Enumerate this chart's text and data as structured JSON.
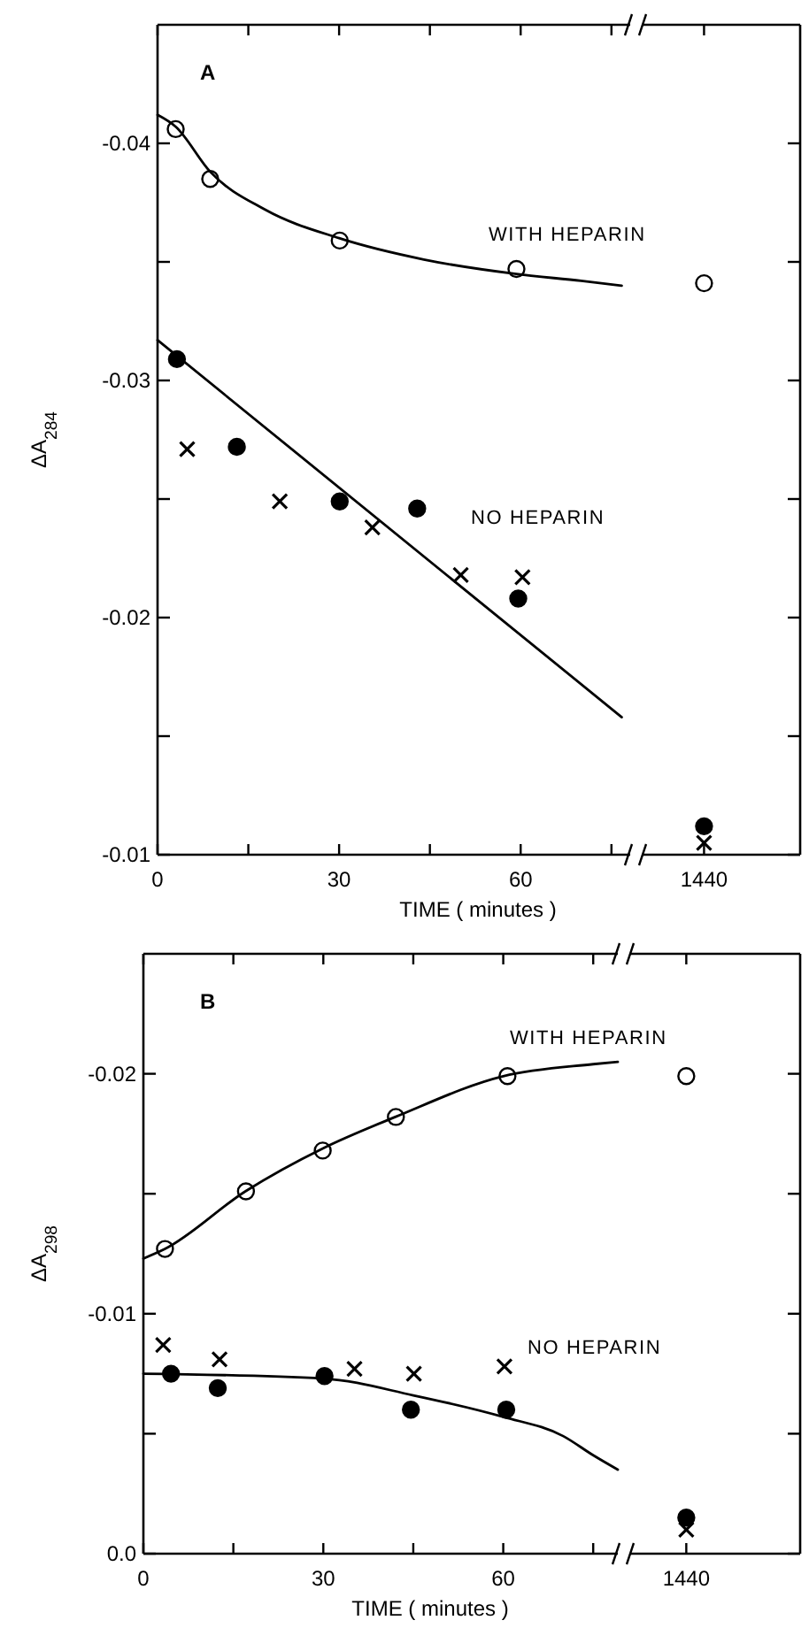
{
  "chart_data": [
    {
      "type": "scatter",
      "title": "A",
      "xlabel": "TIME ( minutes )",
      "ylabel": "ΔA$_{284}$",
      "xlim": [
        0,
        78.1
      ],
      "xticks": [
        0,
        {
          "value": 15,
          "label": null
        },
        30,
        {
          "value": 45,
          "label": null
        },
        60,
        {
          "value": 75,
          "label": null
        }
      ],
      "ylim": [
        -0.01,
        -0.045
      ],
      "yticks": [
        -0.01,
        {
          "value": -0.015,
          "label": null
        },
        -0.02,
        {
          "value": -0.025,
          "label": null
        },
        -0.03,
        {
          "value": -0.035,
          "label": null
        },
        -0.04
      ],
      "series": [
        {
          "marker": "circle",
          "color": "#ffffff",
          "x": [
            3.0,
            8.7,
            30.1,
            59.3
          ],
          "values": [
            -0.0406,
            -0.0385,
            -0.0359,
            -0.0347
          ]
        },
        {
          "type": "line",
          "color": "#000000",
          "x": [
            0,
            3,
            8.7,
            17.8,
            30,
            44,
            59,
            70,
            76.7
          ],
          "values": [
            -0.0412,
            -0.0407,
            -0.0388,
            -0.0372,
            -0.036,
            -0.0351,
            -0.0345,
            -0.0342,
            -0.034
          ]
        },
        {
          "marker": "circle",
          "color": "#000000",
          "x": [
            3.2,
            13.1,
            30.1,
            42.9,
            59.6
          ],
          "values": [
            -0.0309,
            -0.0272,
            -0.0249,
            -0.0246,
            -0.0208
          ]
        },
        {
          "marker": "cross",
          "color": "#000000",
          "x": [
            4.9,
            20.2,
            35.5,
            50.1,
            60.3
          ],
          "values": [
            -0.0271,
            -0.0249,
            -0.0238,
            -0.0218,
            -0.0217
          ]
        },
        {
          "type": "line",
          "color": "#000000",
          "x": [
            0,
            76.7
          ],
          "values": [
            -0.0317,
            -0.0158
          ]
        }
      ],
      "annotations": [
        "WITH HEPARIN",
        "NO HEPARIN"
      ]
    },
    {
      "type": "scatter",
      "tick_labels": "x",
      "categories": [
        "1440"
      ],
      "ylim": [
        -0.01,
        -0.045
      ],
      "yticks": [
        -0.01,
        {
          "value": -0.015,
          "label": null
        },
        -0.02,
        {
          "value": -0.025,
          "label": null
        },
        -0.03,
        {
          "value": -0.035,
          "label": null
        },
        -0.04
      ],
      "series": [
        {
          "marker": "circle",
          "color": "#ffffff",
          "values": [
            -0.0341
          ]
        },
        {
          "marker": "circle",
          "color": "#000000",
          "values": [
            -0.0112
          ]
        },
        {
          "marker": "cross",
          "color": "#000000",
          "values": [
            -0.0105
          ]
        }
      ]
    },
    {
      "type": "scatter",
      "title": "B",
      "xlabel": "TIME ( minutes )",
      "ylabel": "ΔA$_{298}$",
      "xlim": [
        0,
        79.1
      ],
      "xticks": [
        0,
        {
          "value": 15,
          "label": null
        },
        30,
        {
          "value": 45,
          "label": null
        },
        60,
        {
          "value": 75,
          "label": null
        }
      ],
      "ylim": [
        0,
        -0.025
      ],
      "yticks": [
        {
          "value": 0,
          "label": "0.0"
        },
        {
          "value": -0.005,
          "label": null
        },
        -0.01,
        {
          "value": -0.015,
          "label": null
        },
        -0.02
      ],
      "series": [
        {
          "marker": "circle",
          "color": "#ffffff",
          "x": [
            3.6,
            17.1,
            29.9,
            42.1,
            60.7
          ],
          "values": [
            -0.0127,
            -0.0151,
            -0.0168,
            -0.0182,
            -0.0199
          ]
        },
        {
          "type": "line",
          "color": "#000000",
          "x": [
            0,
            3.6,
            17,
            30,
            42,
            60,
            75,
            79.1
          ],
          "values": [
            -0.0123,
            -0.0127,
            -0.0151,
            -0.0169,
            -0.0182,
            -0.0199,
            -0.0204,
            -0.0205
          ]
        },
        {
          "marker": "circle",
          "color": "#000000",
          "x": [
            4.6,
            12.4,
            30.2,
            44.6,
            60.5
          ],
          "values": [
            -0.0075,
            -0.0069,
            -0.0074,
            -0.006,
            -0.006
          ]
        },
        {
          "marker": "cross",
          "color": "#000000",
          "x": [
            3.3,
            12.7,
            35.2,
            45.1,
            60.2
          ],
          "values": [
            -0.0087,
            -0.0081,
            -0.0077,
            -0.0075,
            -0.0078
          ]
        },
        {
          "type": "line",
          "color": "#000000",
          "x": [
            0,
            30,
            45,
            60,
            70,
            75,
            79.1
          ],
          "values": [
            -0.0075,
            -0.0073,
            -0.0066,
            -0.0057,
            -0.0049,
            -0.0041,
            -0.0035
          ]
        }
      ],
      "annotations": [
        "WITH HEPARIN",
        "NO HEPARIN"
      ]
    },
    {
      "type": "scatter",
      "tick_labels": "x",
      "categories": [
        "1440"
      ],
      "ylim": [
        0,
        -0.025
      ],
      "yticks": [
        {
          "value": 0,
          "label": null
        },
        {
          "value": -0.005,
          "label": null
        },
        -0.01,
        {
          "value": -0.015,
          "label": null
        },
        -0.02
      ],
      "series": [
        {
          "marker": "circle",
          "color": "#ffffff",
          "values": [
            -0.0199
          ]
        },
        {
          "marker": "circle",
          "color": "#000000",
          "values": [
            -0.0015
          ]
        },
        {
          "marker": "cross",
          "color": "#000000",
          "values": [
            -0.001
          ]
        }
      ]
    }
  ]
}
